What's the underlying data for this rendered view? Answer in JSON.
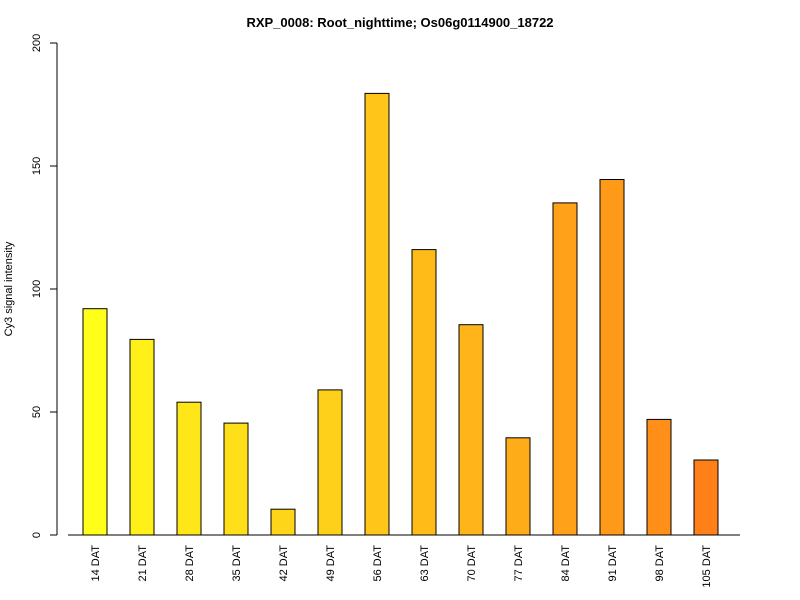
{
  "chart_data": {
    "type": "bar",
    "title": "RXP_0008: Root_nighttime; Os06g0114900_18722",
    "xlabel": "",
    "ylabel": "Cy3 signal intensity",
    "ylim": [
      0,
      200
    ],
    "yticks": [
      0,
      50,
      100,
      150,
      200
    ],
    "categories": [
      "14 DAT",
      "21 DAT",
      "28 DAT",
      "35 DAT",
      "42 DAT",
      "49 DAT",
      "56 DAT",
      "63 DAT",
      "70 DAT",
      "77 DAT",
      "84 DAT",
      "91 DAT",
      "98 DAT",
      "105 DAT"
    ],
    "values": [
      92,
      79.5,
      54,
      45.5,
      10.5,
      59,
      179.5,
      116,
      85.5,
      39.5,
      135,
      144.5,
      47,
      30.5
    ],
    "colors": [
      "#FFFF19",
      "#FFF019",
      "#FFE619",
      "#FFDF19",
      "#FFD519",
      "#FFD019",
      "#FFC619",
      "#FFBC19",
      "#FFB519",
      "#FFAC19",
      "#FFA219",
      "#FF9A19",
      "#FF8F19",
      "#FF8019"
    ],
    "grid": false,
    "legend": "none"
  }
}
